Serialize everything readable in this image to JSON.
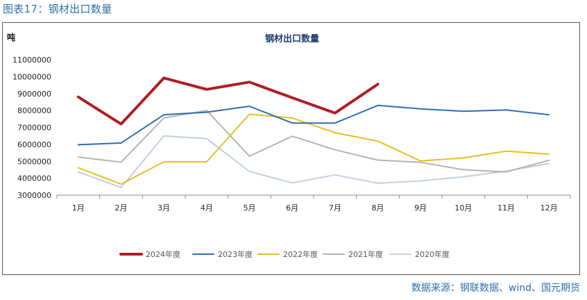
{
  "caption": "图表17：钢材出口数量",
  "source": "数据来源：钢联数据、wind、国元期货",
  "chart_data": {
    "type": "line",
    "title": "钢材出口数量",
    "ylabel": "吨",
    "xlabel": "",
    "ylim": [
      3000000,
      11000000
    ],
    "yticks": [
      3000000,
      4000000,
      5000000,
      6000000,
      7000000,
      8000000,
      9000000,
      10000000,
      11000000
    ],
    "categories": [
      "1月",
      "2月",
      "3月",
      "4月",
      "5月",
      "6月",
      "7月",
      "8月",
      "9月",
      "10月",
      "11月",
      "12月"
    ],
    "legend_position": "bottom",
    "series": [
      {
        "name": "2024年度",
        "color": "#b01c24",
        "width": 4,
        "values": [
          8800000,
          7200000,
          9920000,
          9250000,
          9680000,
          8750000,
          7850000,
          9550000,
          null,
          null,
          null,
          null
        ]
      },
      {
        "name": "2023年度",
        "color": "#2d6db5",
        "width": 2,
        "values": [
          5980000,
          6080000,
          7750000,
          7900000,
          8250000,
          7260000,
          7260000,
          8300000,
          8100000,
          7950000,
          8030000,
          7750000
        ]
      },
      {
        "name": "2022年度",
        "color": "#e6be22",
        "width": 2,
        "values": [
          4620000,
          3650000,
          4970000,
          4970000,
          7780000,
          7560000,
          6690000,
          6190000,
          5020000,
          5200000,
          5600000,
          5420000
        ]
      },
      {
        "name": "2021年度",
        "color": "#b3b3b3",
        "width": 2,
        "values": [
          5250000,
          4950000,
          7560000,
          8000000,
          5300000,
          6480000,
          5680000,
          5070000,
          4940000,
          4500000,
          4370000,
          5060000
        ]
      },
      {
        "name": "2020年度",
        "color": "#c2cfe0",
        "width": 2,
        "values": [
          4370000,
          3450000,
          6500000,
          6340000,
          4400000,
          3720000,
          4200000,
          3700000,
          3840000,
          4080000,
          4420000,
          4870000
        ]
      }
    ]
  }
}
